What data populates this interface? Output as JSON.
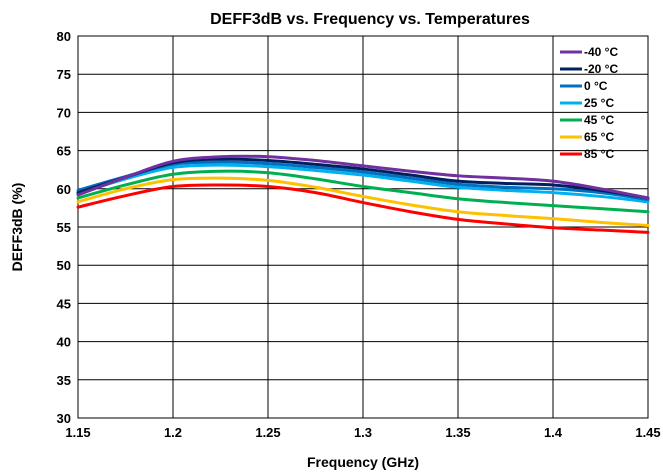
{
  "chart_data": {
    "type": "line",
    "title": "DEFF3dB vs. Frequency vs. Temperatures",
    "xlabel": "Frequency (GHz)",
    "ylabel": "DEFF3dB (%)",
    "xlim": [
      1.15,
      1.45
    ],
    "ylim": [
      30,
      80
    ],
    "xticks": [
      1.15,
      1.2,
      1.25,
      1.3,
      1.35,
      1.4,
      1.45
    ],
    "xtick_labels": [
      "1.15",
      "1.2",
      "1.25",
      "1.3",
      "1.35",
      "1.4",
      "1.45"
    ],
    "yticks": [
      30,
      35,
      40,
      45,
      50,
      55,
      60,
      65,
      70,
      75,
      80
    ],
    "ytick_labels": [
      "30",
      "35",
      "40",
      "45",
      "50",
      "55",
      "60",
      "65",
      "70",
      "75",
      "80"
    ],
    "grid": true,
    "legend_position": "top-right",
    "x": [
      1.15,
      1.175,
      1.2,
      1.225,
      1.25,
      1.275,
      1.3,
      1.325,
      1.35,
      1.375,
      1.4,
      1.425,
      1.45
    ],
    "series": [
      {
        "name": "-40 °C",
        "color": "#7030A0",
        "values": [
          59.2,
          61.5,
          63.6,
          64.2,
          64.2,
          63.7,
          63.0,
          62.3,
          61.7,
          61.4,
          61.0,
          60.0,
          58.8
        ]
      },
      {
        "name": "-20 °C",
        "color": "#002060",
        "values": [
          59.5,
          61.5,
          63.4,
          63.9,
          63.7,
          63.2,
          62.6,
          61.8,
          61.0,
          60.7,
          60.5,
          59.8,
          58.8
        ]
      },
      {
        "name": "0 °C",
        "color": "#0070C0",
        "values": [
          59.8,
          61.6,
          63.2,
          63.5,
          63.3,
          62.8,
          62.2,
          61.4,
          60.6,
          60.2,
          60.0,
          59.5,
          58.6
        ]
      },
      {
        "name": "25 °C",
        "color": "#00B0F0",
        "values": [
          59.4,
          61.3,
          62.8,
          63.1,
          62.9,
          62.4,
          61.8,
          61.0,
          60.2,
          59.8,
          59.5,
          59.0,
          58.3
        ]
      },
      {
        "name": "45 °C",
        "color": "#00B050",
        "values": [
          58.8,
          60.5,
          61.9,
          62.3,
          62.1,
          61.3,
          60.3,
          59.5,
          58.7,
          58.2,
          57.8,
          57.4,
          57.0
        ]
      },
      {
        "name": "65 °C",
        "color": "#FFC000",
        "values": [
          58.3,
          60.0,
          61.2,
          61.4,
          61.1,
          60.2,
          59.0,
          57.9,
          57.0,
          56.5,
          56.1,
          55.6,
          55.2
        ]
      },
      {
        "name": "85 °C",
        "color": "#FF0000",
        "values": [
          57.6,
          59.1,
          60.3,
          60.5,
          60.3,
          59.5,
          58.2,
          57.0,
          56.0,
          55.4,
          54.9,
          54.6,
          54.3
        ]
      }
    ]
  }
}
